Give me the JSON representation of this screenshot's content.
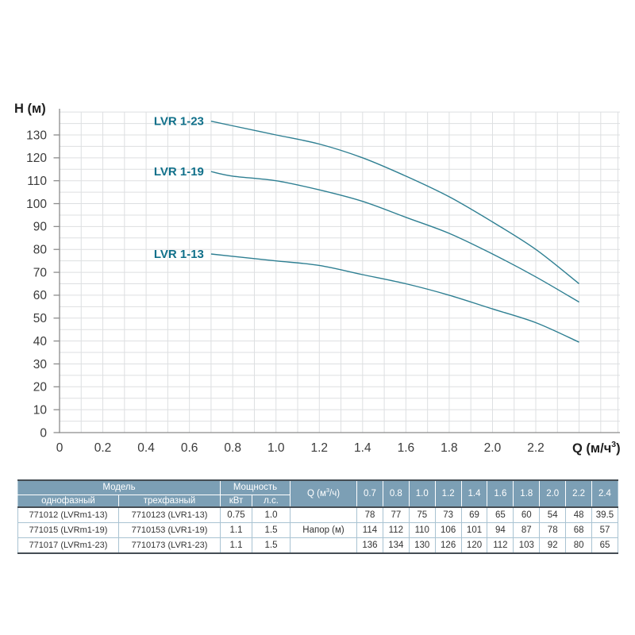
{
  "chart_data": {
    "type": "line",
    "title": "",
    "xlabel": "Q (м/ч³)",
    "ylabel": "H (м)",
    "xlabel_parts": {
      "prefix": "Q (м/ч",
      "sup": "3",
      "suffix": ")"
    },
    "xlim": [
      0,
      2.58
    ],
    "ylim": [
      0,
      140
    ],
    "x": [
      0.7,
      0.8,
      1.0,
      1.2,
      1.4,
      1.6,
      1.8,
      2.0,
      2.2,
      2.4
    ],
    "series": [
      {
        "name": "LVR 1-13",
        "values": [
          78,
          77,
          75,
          73,
          69,
          65,
          60,
          54,
          48,
          39.5
        ]
      },
      {
        "name": "LVR 1-19",
        "values": [
          114,
          112,
          110,
          106,
          101,
          94,
          87,
          78,
          68,
          57
        ]
      },
      {
        "name": "LVR 1-23",
        "values": [
          136,
          134,
          130,
          126,
          120,
          112,
          103,
          92,
          80,
          65
        ]
      }
    ],
    "x_tick_labels": [
      "0",
      "0.2",
      "0.4",
      "0.6",
      "0.8",
      "1.0",
      "1.2",
      "1.4",
      "1.6",
      "1.8",
      "2.0",
      "2.2"
    ],
    "y_tick_labels": [
      "0",
      "10",
      "20",
      "30",
      "40",
      "50",
      "60",
      "70",
      "80",
      "90",
      "100",
      "110",
      "120",
      "130"
    ],
    "x_grid_step": 0.1,
    "y_grid_step": 5,
    "grid": true,
    "legend": "inline-labels-at-curve-start"
  },
  "table": {
    "header": {
      "model": "Модель",
      "power": "Мощность",
      "single_phase": "однофазный",
      "three_phase": "трехфазный",
      "kw": "кВт",
      "hp": "л.с.",
      "q_parts": {
        "prefix": "Q (м",
        "sup": "3",
        "suffix": "/ч)"
      },
      "q_values": [
        "0.7",
        "0.8",
        "1.0",
        "1.2",
        "1.4",
        "1.6",
        "1.8",
        "2.0",
        "2.2",
        "2.4"
      ]
    },
    "head_row_label": "Напор (м)",
    "rows": [
      {
        "single": "771012 (LVRm1-13)",
        "three": "7710123 (LVR1-13)",
        "kw": "0.75",
        "hp": "1.0",
        "heads": [
          "78",
          "77",
          "75",
          "73",
          "69",
          "65",
          "60",
          "54",
          "48",
          "39.5"
        ]
      },
      {
        "single": "771015 (LVRm1-19)",
        "three": "7710153 (LVR1-19)",
        "kw": "1.1",
        "hp": "1.5",
        "heads": [
          "114",
          "112",
          "110",
          "106",
          "101",
          "94",
          "87",
          "78",
          "68",
          "57"
        ]
      },
      {
        "single": "771017 (LVRm1-23)",
        "three": "7710173 (LVR1-23)",
        "kw": "1.1",
        "hp": "1.5",
        "heads": [
          "136",
          "134",
          "130",
          "126",
          "120",
          "112",
          "103",
          "92",
          "80",
          "65"
        ]
      }
    ]
  },
  "colors": {
    "curve": "#2e7f92",
    "curve_label": "#10708a",
    "header_bg": "#7c9fb5",
    "header_text": "#ffffff",
    "dark_border": "#454d54",
    "light_border": "#a9c3d2",
    "grid": "#dddfe1",
    "axis": "#8c8c8c",
    "tick_text": "#3a3a3a",
    "title_text": "#1f1f1f",
    "cell_text": "#333333"
  }
}
